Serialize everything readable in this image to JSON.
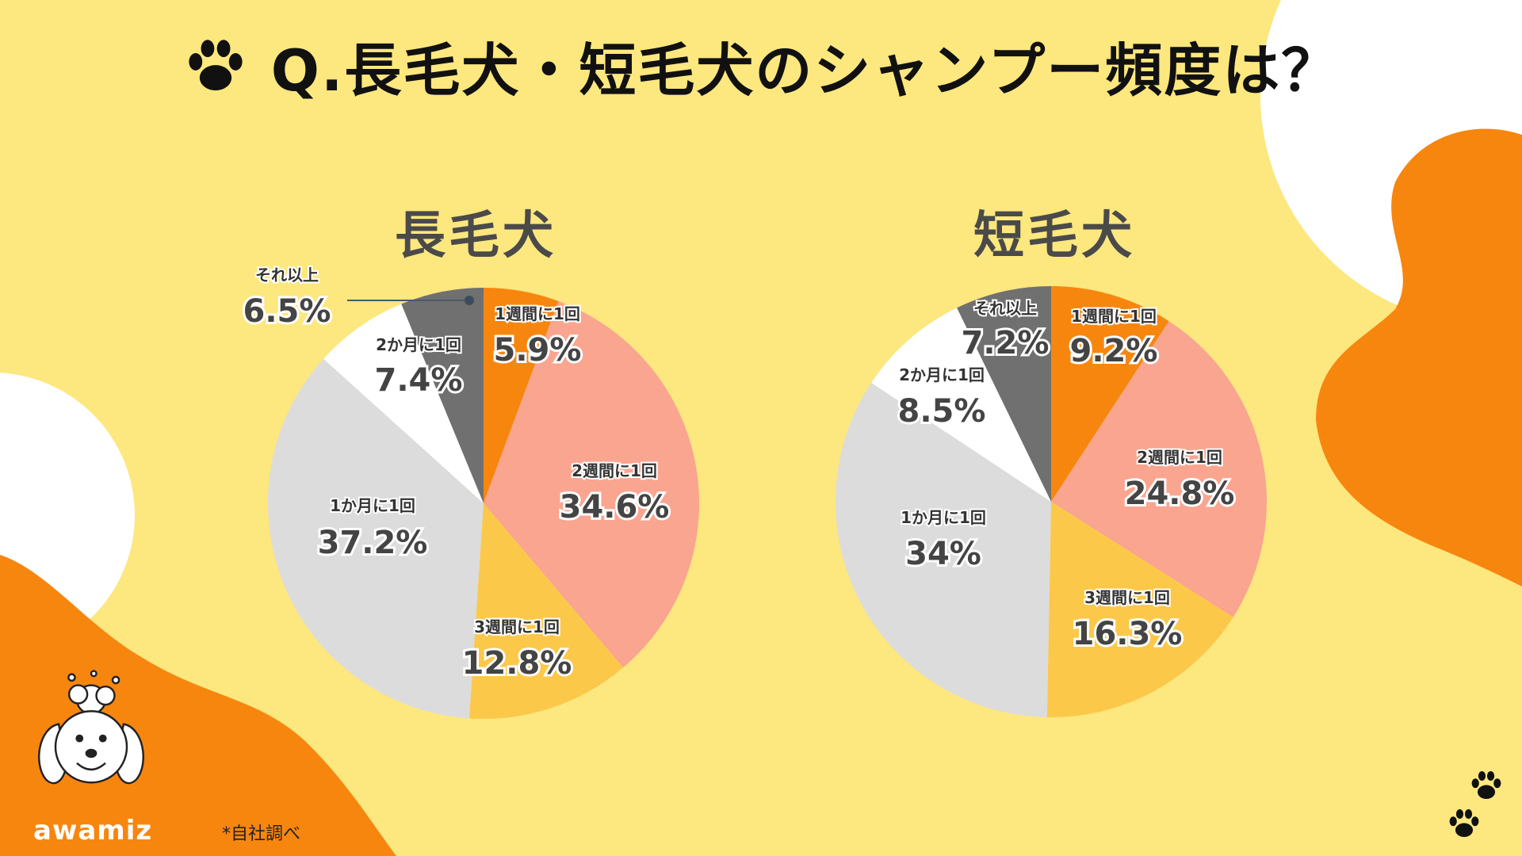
{
  "title": "Q.長毛犬・短毛犬のシャンプー頻度は？",
  "note": "*自社調べ",
  "brand": "awamiz",
  "colors": {
    "background": "#fde77f",
    "accent_orange": "#f7860f",
    "slice_1week": "#f7860f",
    "slice_2week": "#f9a590",
    "slice_3week": "#fcc84a",
    "slice_1month": "#dcdcdc",
    "slice_2month": "#ffffff",
    "slice_other": "#707070"
  },
  "icons": [
    "paw-icon",
    "dog-mascot-icon"
  ],
  "chart_data": [
    {
      "type": "pie",
      "title": "長毛犬",
      "slices": [
        {
          "label": "1週間に1回",
          "value": 5.9,
          "value_label": "5.9%",
          "color": "#f7860f"
        },
        {
          "label": "2週間に1回",
          "value": 34.6,
          "value_label": "34.6%",
          "color": "#f9a590"
        },
        {
          "label": "3週間に1回",
          "value": 12.8,
          "value_label": "12.8%",
          "color": "#fcc84a"
        },
        {
          "label": "1か月に1回",
          "value": 37.2,
          "value_label": "37.2%",
          "color": "#dcdcdc"
        },
        {
          "label": "2か月に1回",
          "value": 7.4,
          "value_label": "7.4%",
          "color": "#ffffff"
        },
        {
          "label": "それ以上",
          "value": 6.5,
          "value_label": "6.5%",
          "color": "#707070"
        }
      ]
    },
    {
      "type": "pie",
      "title": "短毛犬",
      "slices": [
        {
          "label": "1週間に1回",
          "value": 9.2,
          "value_label": "9.2%",
          "color": "#f7860f"
        },
        {
          "label": "2週間に1回",
          "value": 24.8,
          "value_label": "24.8%",
          "color": "#f9a590"
        },
        {
          "label": "3週間に1回",
          "value": 16.3,
          "value_label": "16.3%",
          "color": "#fcc84a"
        },
        {
          "label": "1か月に1回",
          "value": 34,
          "value_label": "34%",
          "color": "#dcdcdc"
        },
        {
          "label": "2か月に1回",
          "value": 8.5,
          "value_label": "8.5%",
          "color": "#ffffff"
        },
        {
          "label": "それ以上",
          "value": 7.2,
          "value_label": "7.2%",
          "color": "#707070"
        }
      ]
    }
  ]
}
